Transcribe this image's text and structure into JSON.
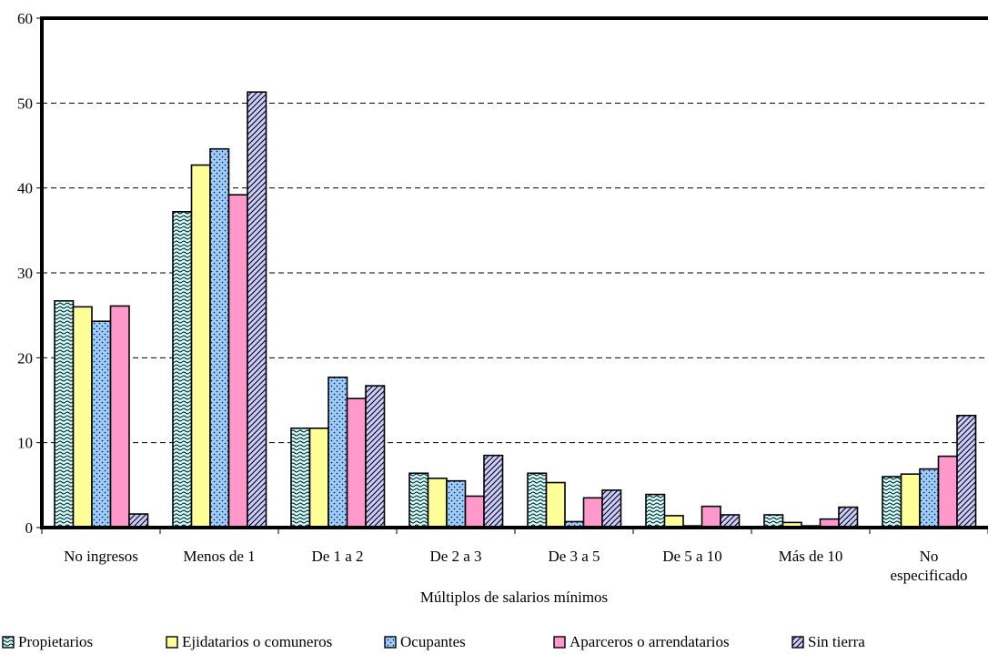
{
  "chart_data": {
    "type": "bar",
    "title": "",
    "xlabel": "Múltiplos de salarios mínimos",
    "ylabel": "",
    "ylim": [
      0,
      60
    ],
    "yticks": [
      0,
      10,
      20,
      30,
      40,
      50,
      60
    ],
    "grid": true,
    "legend": "bottom",
    "categories": [
      [
        "No ingresos"
      ],
      [
        "Menos de 1"
      ],
      [
        "De 1 a 2"
      ],
      [
        "De 2 a 3"
      ],
      [
        "De 3 a 5"
      ],
      [
        "De 5 a 10"
      ],
      [
        "Más de 10"
      ],
      [
        "No",
        "especificado"
      ]
    ],
    "series": [
      {
        "name": "Propietarios",
        "color": "#CCFFFF",
        "pattern": "wave",
        "values": [
          26.7,
          37.2,
          11.7,
          6.4,
          6.4,
          3.9,
          1.5,
          6.0
        ]
      },
      {
        "name": "Ejidatarios o comuneros",
        "color": "#FFFF99",
        "pattern": "solid",
        "values": [
          26.0,
          42.7,
          11.7,
          5.8,
          5.3,
          1.4,
          0.6,
          6.3
        ]
      },
      {
        "name": "Ocupantes",
        "color": "#99CCFF",
        "pattern": "dots",
        "values": [
          24.3,
          44.6,
          17.7,
          5.5,
          0.7,
          0.2,
          0.2,
          6.9
        ]
      },
      {
        "name": "Aparceros o arrendatarios",
        "color": "#FF99CC",
        "pattern": "solid",
        "values": [
          26.1,
          39.2,
          15.2,
          3.7,
          3.5,
          2.5,
          1.0,
          8.4
        ]
      },
      {
        "name": "Sin tierra",
        "color": "#CCCCFF",
        "pattern": "diag",
        "values": [
          1.6,
          51.3,
          16.7,
          8.5,
          4.4,
          1.5,
          2.4,
          13.2
        ]
      }
    ]
  }
}
